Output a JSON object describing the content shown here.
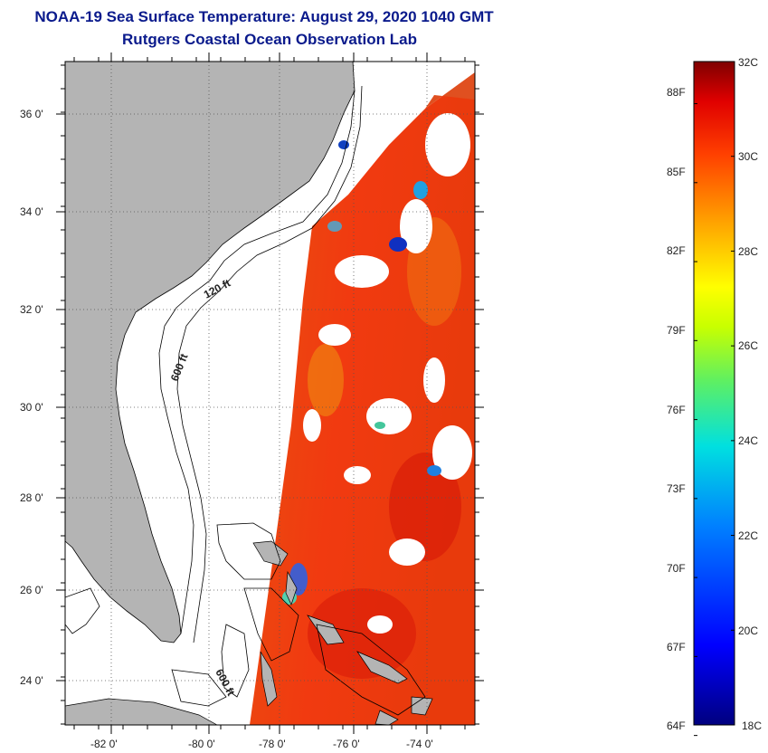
{
  "title": {
    "line1": "NOAA-19 Sea Surface Temperature:  August 29, 2020 1040 GMT",
    "line2": "Rutgers Coastal Ocean Observation Lab"
  },
  "map": {
    "lat_labels": [
      "36 0'",
      "34 0'",
      "32 0'",
      "30 0'",
      "28 0'",
      "26 0'",
      "24 0'"
    ],
    "lon_labels": [
      "-82 0'",
      "-80 0'",
      "-78 0'",
      "-76 0'",
      "-74 0'"
    ],
    "contour_labels": [
      "120 ft",
      "600 ft",
      "600 ft"
    ],
    "land_color": "#b4b4b4"
  },
  "colorbar": {
    "celsius_labels": [
      "32C",
      "30C",
      "28C",
      "26C",
      "24C",
      "22C",
      "20C",
      "18C"
    ],
    "fahrenheit_labels": [
      "88F",
      "85F",
      "82F",
      "79F",
      "76F",
      "73F",
      "70F",
      "67F",
      "64F"
    ],
    "range_c": [
      18,
      32
    ]
  }
}
